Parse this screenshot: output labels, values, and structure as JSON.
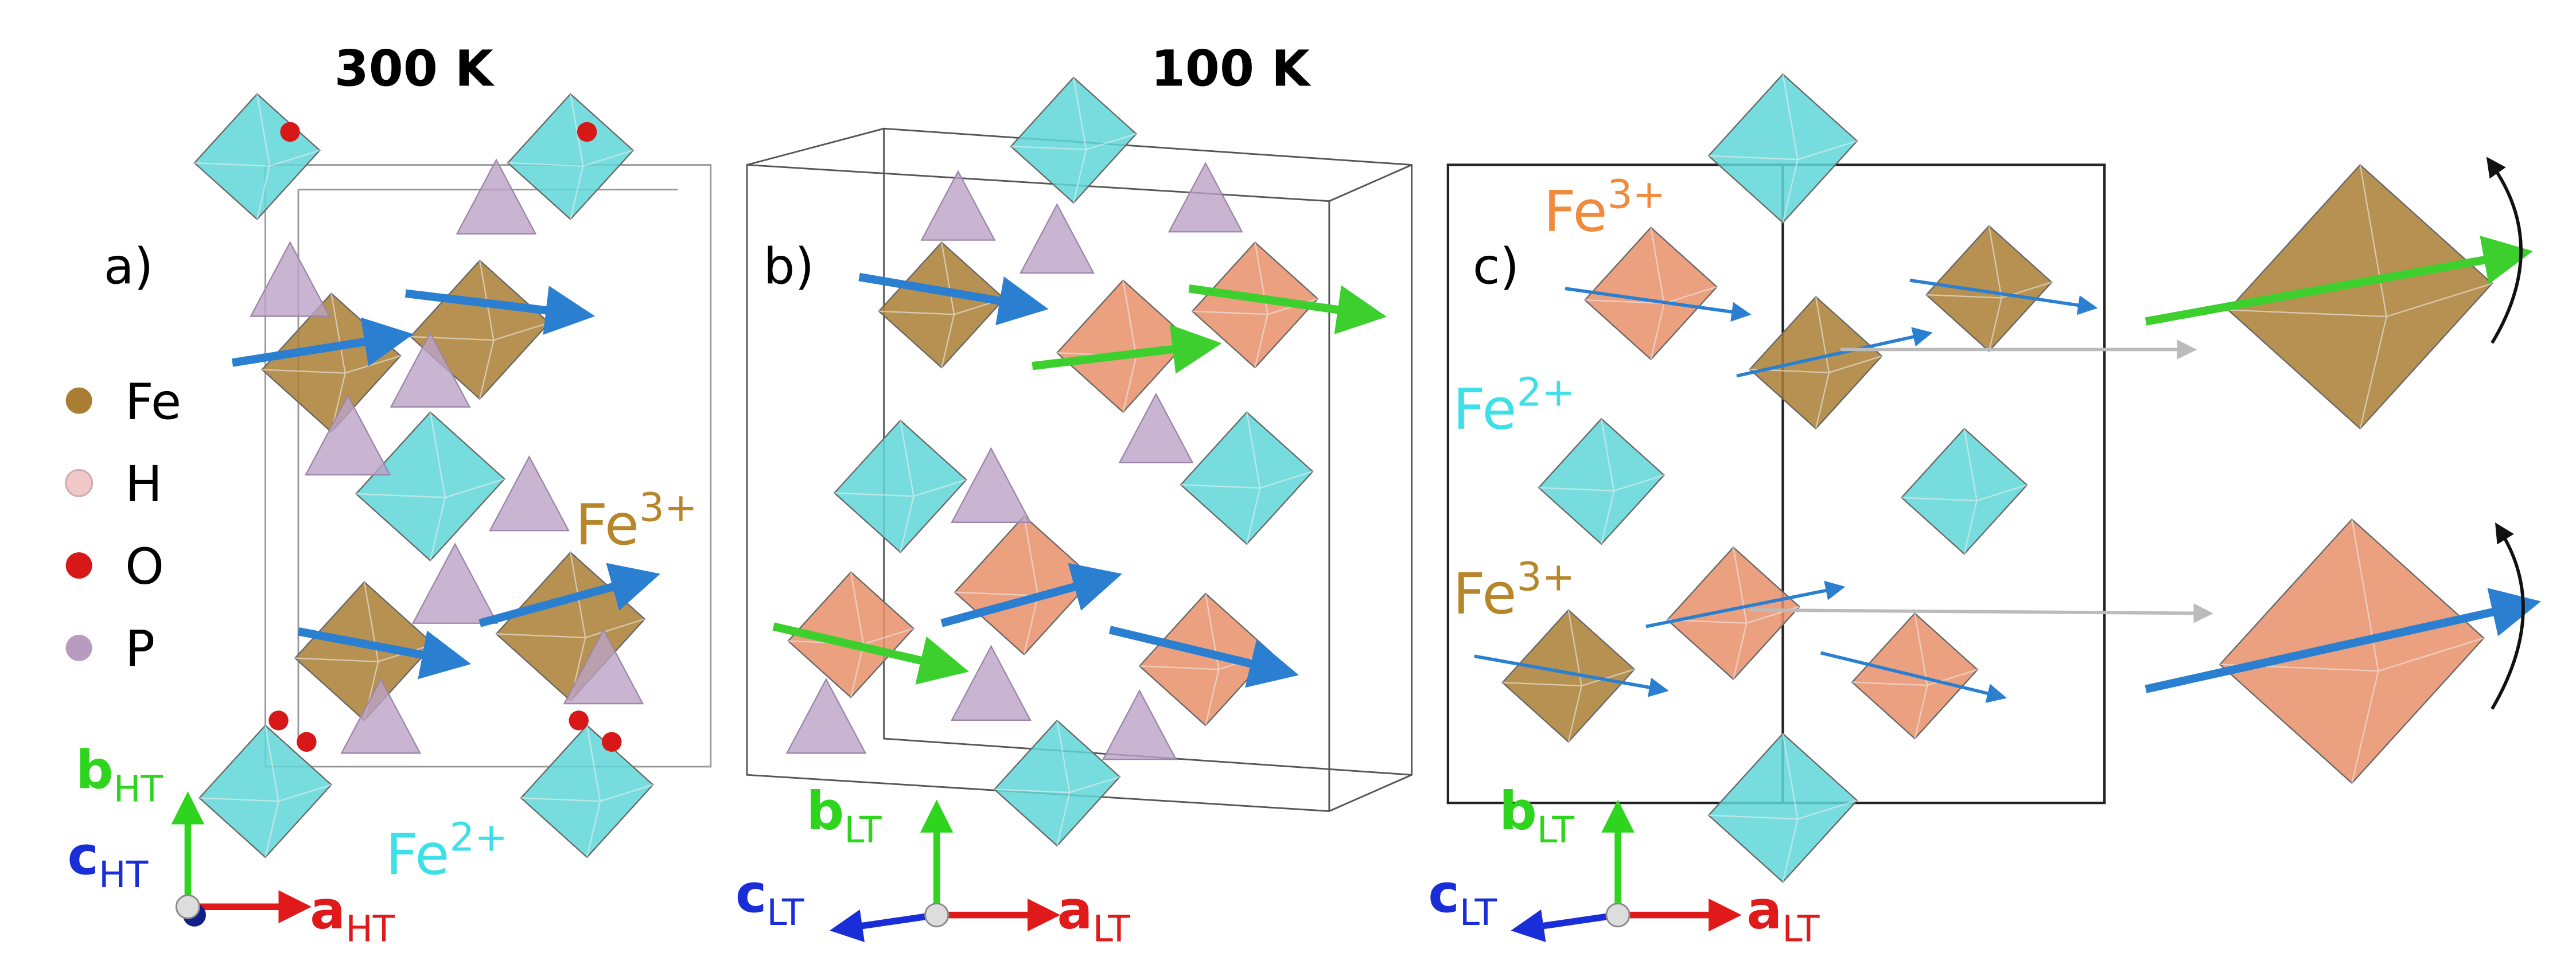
{
  "headers": {
    "left": "300 K",
    "right": "100 K"
  },
  "panels": [
    {
      "label": "a)"
    },
    {
      "label": "b)"
    },
    {
      "label": "c)"
    }
  ],
  "legend": [
    {
      "label": "Fe"
    },
    {
      "label": "H"
    },
    {
      "label": "O"
    },
    {
      "label": "P"
    }
  ],
  "ion_labels": [
    {
      "element": "Fe",
      "charge": "3+"
    },
    {
      "element": "Fe",
      "charge": "2+"
    },
    {
      "element": "Fe",
      "charge": "3+"
    },
    {
      "element": "Fe",
      "charge": "2+"
    },
    {
      "element": "Fe",
      "charge": "3+"
    }
  ],
  "axis_labels": [
    {
      "letter": "b",
      "sub": "HT"
    },
    {
      "letter": "c",
      "sub": "HT"
    },
    {
      "letter": "a",
      "sub": "HT"
    },
    {
      "letter": "b",
      "sub": "LT"
    },
    {
      "letter": "c",
      "sub": "LT"
    },
    {
      "letter": "a",
      "sub": "LT"
    },
    {
      "letter": "b",
      "sub": "LT"
    },
    {
      "letter": "c",
      "sub": "LT"
    },
    {
      "letter": "a",
      "sub": "LT"
    }
  ]
}
